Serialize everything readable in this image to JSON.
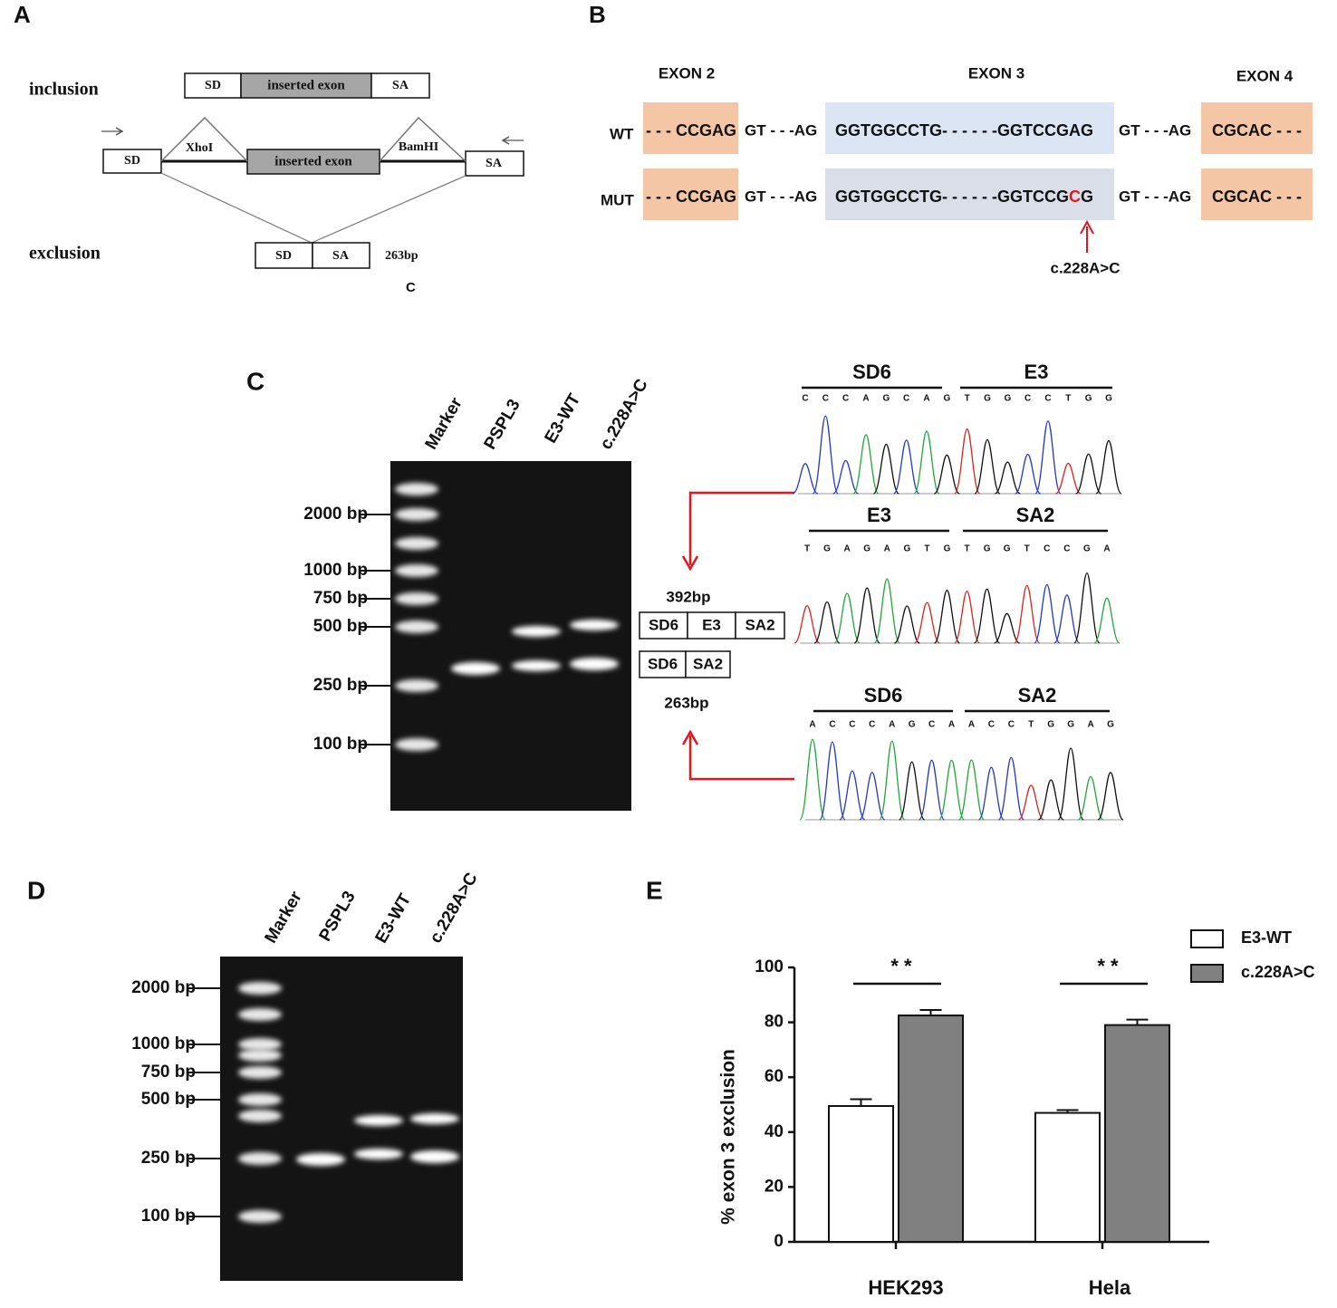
{
  "panels": {
    "A": {
      "label": "A",
      "inclusion": "inclusion",
      "exclusion": "exclusion",
      "sd": "SD",
      "sa": "SA",
      "inserted_exon": "inserted exon",
      "xhoi": "XhoI",
      "bamhi": "BamHI",
      "size": "263bp",
      "note": "C"
    },
    "B": {
      "label": "B",
      "exons": [
        "EXON 2",
        "EXON 3",
        "EXON 4"
      ],
      "rows": [
        {
          "name": "WT",
          "exon2": "- - - CCGAG",
          "intron2": "GT - - -AG",
          "exon3_start": "GGTGGCCTG- - - - - -GGTCCG",
          "exon3_site": "A",
          "exon3_end": "G",
          "intron3": "GT - - -AG",
          "exon4": "CGCAC - - -"
        },
        {
          "name": "MUT",
          "exon2": "- - - CCGAG",
          "intron2": "GT - - -AG",
          "exon3_start": "GGTGGCCTG- - - - - -GGTCCG",
          "exon3_site": "C",
          "exon3_end": "G",
          "intron3": "GT - - -AG",
          "exon4": "CGCAC - - -"
        }
      ],
      "mutation": "c.228A>C"
    },
    "C": {
      "label": "C",
      "lanes": [
        "Marker",
        "PSPL3",
        "E3-WT",
        "c.228A>C"
      ],
      "ladder": [
        "2000 bp",
        "1000 bp",
        "750 bp",
        "500 bp",
        "250 bp",
        "100 bp"
      ],
      "long_product": "392bp",
      "short_product": "263bp",
      "long_segments": [
        "SD6",
        "E3",
        "SA2"
      ],
      "short_segments": [
        "SD6",
        "SA2"
      ],
      "traces": [
        {
          "segments": [
            "SD6",
            "E3"
          ],
          "bases": [
            "C",
            "C",
            "C",
            "A",
            "G",
            "C",
            "A",
            "G",
            "T",
            "G",
            "G",
            "C",
            "C",
            "T",
            "G",
            "G"
          ]
        },
        {
          "segments": [
            "E3",
            "SA2"
          ],
          "bases": [
            "T",
            "G",
            "A",
            "G",
            "A",
            "G",
            "T",
            "G",
            "T",
            "G",
            "G",
            "T",
            "C",
            "C",
            "G",
            "A"
          ]
        },
        {
          "segments": [
            "SD6",
            "SA2"
          ],
          "bases": [
            "A",
            "C",
            "C",
            "C",
            "A",
            "G",
            "C",
            "A",
            "A",
            "C",
            "C",
            "T",
            "G",
            "G",
            "A",
            "G"
          ]
        }
      ]
    },
    "D": {
      "label": "D",
      "lanes": [
        "Marker",
        "PSPL3",
        "E3-WT",
        "c.228A>C"
      ],
      "ladder": [
        "2000 bp",
        "1000 bp",
        "750 bp",
        "500 bp",
        "250 bp",
        "100 bp"
      ]
    },
    "E": {
      "label": "E"
    }
  },
  "chart_data": {
    "type": "bar",
    "ylabel": "% exon 3 exclusion",
    "categories": [
      "HEK293",
      "Hela"
    ],
    "series": [
      {
        "name": "E3-WT",
        "color": "#ffffff",
        "values": [
          49.5,
          47
        ],
        "errors": [
          2.5,
          1
        ]
      },
      {
        "name": "c.228A>C",
        "color": "#808080",
        "values": [
          82.5,
          79
        ],
        "errors": [
          2,
          2
        ]
      }
    ],
    "annotations": [
      "* *",
      "* *"
    ],
    "ylim": [
      0,
      100
    ],
    "yticks": [
      0,
      20,
      40,
      60,
      80,
      100
    ]
  }
}
